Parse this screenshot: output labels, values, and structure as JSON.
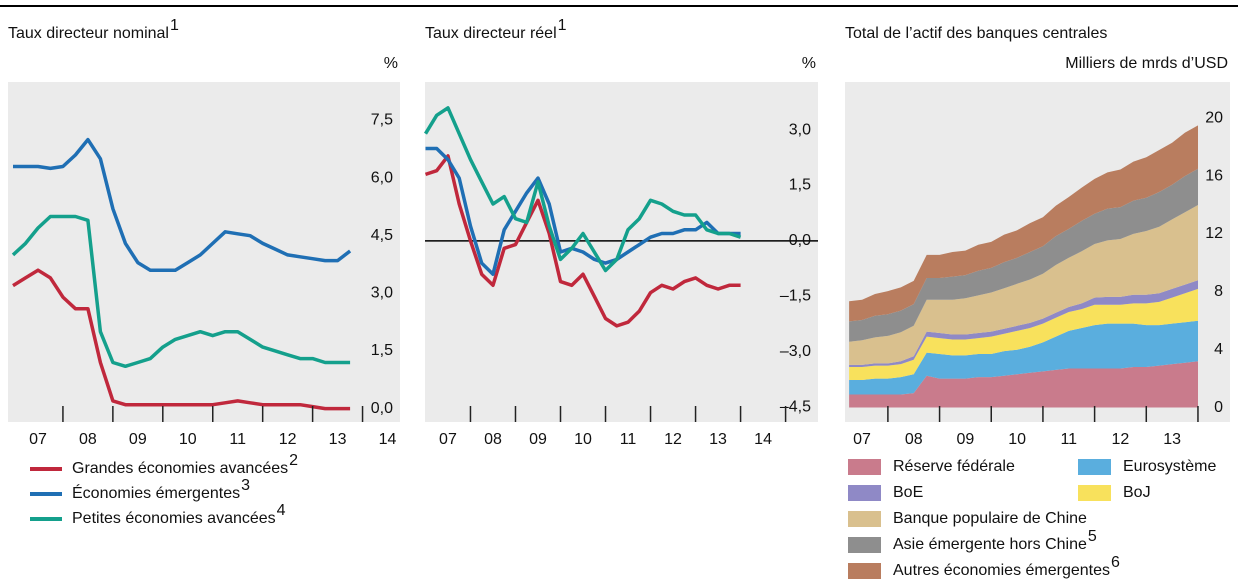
{
  "chart_data": [
    {
      "type": "line",
      "title": "Taux directeur nominal",
      "title_note": "1",
      "unit_label": "%",
      "x": [
        2007,
        2007.25,
        2007.5,
        2007.75,
        2008,
        2008.25,
        2008.5,
        2008.75,
        2009,
        2009.25,
        2009.5,
        2009.75,
        2010,
        2010.25,
        2010.5,
        2010.75,
        2011,
        2011.25,
        2011.5,
        2011.75,
        2012,
        2012.25,
        2012.5,
        2012.75,
        2013,
        2013.25,
        2013.5,
        2013.75
      ],
      "xlim": [
        2006.9,
        2014.75
      ],
      "xticks": [
        {
          "value": 2007.5,
          "label": "07"
        },
        {
          "value": 2008.5,
          "label": "08"
        },
        {
          "value": 2009.5,
          "label": "09"
        },
        {
          "value": 2010.5,
          "label": "10"
        },
        {
          "value": 2011.5,
          "label": "11"
        },
        {
          "value": 2012.5,
          "label": "12"
        },
        {
          "value": 2013.5,
          "label": "13"
        },
        {
          "value": 2014.5,
          "label": "14"
        }
      ],
      "ylim": [
        -0.35,
        8.5
      ],
      "yticks": [
        {
          "value": 0,
          "label": "0,0"
        },
        {
          "value": 1.5,
          "label": "1,5"
        },
        {
          "value": 3,
          "label": "3,0"
        },
        {
          "value": 4.5,
          "label": "4,5"
        },
        {
          "value": 6,
          "label": "6,0"
        },
        {
          "value": 7.5,
          "label": "7,5"
        }
      ],
      "series": [
        {
          "name": "Grandes économies avancées",
          "name_note": "2",
          "color": "#c0283c",
          "values": [
            3.2,
            3.4,
            3.6,
            3.4,
            2.9,
            2.6,
            2.6,
            1.2,
            0.2,
            0.1,
            0.1,
            0.1,
            0.1,
            0.1,
            0.1,
            0.1,
            0.1,
            0.15,
            0.2,
            0.15,
            0.1,
            0.1,
            0.1,
            0.1,
            0.05,
            0,
            0,
            0
          ]
        },
        {
          "name": "Économies émergentes",
          "name_note": "3",
          "color": "#1f6fb4",
          "values": [
            6.3,
            6.3,
            6.3,
            6.25,
            6.3,
            6.6,
            7.0,
            6.5,
            5.2,
            4.3,
            3.8,
            3.6,
            3.6,
            3.6,
            3.8,
            4.0,
            4.3,
            4.6,
            4.55,
            4.5,
            4.3,
            4.15,
            4.0,
            3.95,
            3.9,
            3.85,
            3.85,
            4.1
          ]
        },
        {
          "name": "Petites économies avancées",
          "name_note": "4",
          "color": "#14a08c",
          "values": [
            4.0,
            4.3,
            4.7,
            5.0,
            5.0,
            5.0,
            4.9,
            2.0,
            1.2,
            1.1,
            1.2,
            1.3,
            1.6,
            1.8,
            1.9,
            2.0,
            1.9,
            2.0,
            2.0,
            1.8,
            1.6,
            1.5,
            1.4,
            1.3,
            1.3,
            1.2,
            1.2,
            1.2
          ]
        }
      ]
    },
    {
      "type": "line",
      "title": "Taux directeur réel",
      "title_note": "1",
      "unit_label": "%",
      "zero_line": true,
      "x": [
        2007,
        2007.25,
        2007.5,
        2007.75,
        2008,
        2008.25,
        2008.5,
        2008.75,
        2009,
        2009.25,
        2009.5,
        2009.75,
        2010,
        2010.25,
        2010.5,
        2010.75,
        2011,
        2011.25,
        2011.5,
        2011.75,
        2012,
        2012.25,
        2012.5,
        2012.75,
        2013,
        2013.25,
        2013.5,
        2013.75,
        2014
      ],
      "xlim": [
        2006.99,
        2015.72
      ],
      "xticks": [
        {
          "value": 2007.5,
          "label": "07"
        },
        {
          "value": 2008.5,
          "label": "08"
        },
        {
          "value": 2009.5,
          "label": "09"
        },
        {
          "value": 2010.5,
          "label": "10"
        },
        {
          "value": 2011.5,
          "label": "11"
        },
        {
          "value": 2012.5,
          "label": "12"
        },
        {
          "value": 2013.5,
          "label": "13"
        },
        {
          "value": 2014.5,
          "label": "14"
        }
      ],
      "ylim": [
        -4.9,
        4.3
      ],
      "yticks": [
        {
          "value": -4.5,
          "label": "–4,5"
        },
        {
          "value": -3,
          "label": "–3,0"
        },
        {
          "value": -1.5,
          "label": "–1,5"
        },
        {
          "value": 0,
          "label": "0,0"
        },
        {
          "value": 1.5,
          "label": "1,5"
        },
        {
          "value": 3,
          "label": "3,0"
        }
      ],
      "series": [
        {
          "color": "#c0283c",
          "values": [
            1.8,
            1.9,
            2.3,
            1.0,
            0,
            -0.9,
            -1.2,
            -0.2,
            -0.1,
            0.5,
            1.1,
            0.2,
            -1.1,
            -1.2,
            -0.9,
            -1.5,
            -2.1,
            -2.3,
            -2.2,
            -1.9,
            -1.4,
            -1.2,
            -1.3,
            -1.1,
            -1.0,
            -1.2,
            -1.3,
            -1.2,
            -1.2
          ]
        },
        {
          "color": "#1f6fb4",
          "values": [
            2.5,
            2.5,
            2.2,
            1.7,
            0.4,
            -0.6,
            -0.9,
            0.3,
            0.8,
            1.3,
            1.7,
            1.0,
            -0.3,
            -0.2,
            -0.3,
            -0.5,
            -0.6,
            -0.5,
            -0.3,
            -0.1,
            0.1,
            0.2,
            0.2,
            0.3,
            0.3,
            0.5,
            0.2,
            0.2,
            0.2
          ]
        },
        {
          "color": "#14a08c",
          "values": [
            2.9,
            3.4,
            3.6,
            2.9,
            2.2,
            1.6,
            1.0,
            1.2,
            0.6,
            0.5,
            1.6,
            0.4,
            -0.5,
            -0.2,
            0.2,
            -0.3,
            -0.8,
            -0.5,
            0.3,
            0.6,
            1.1,
            1.0,
            0.8,
            0.7,
            0.7,
            0.3,
            0.2,
            0.2,
            0.1
          ]
        }
      ]
    },
    {
      "type": "area",
      "stacked": true,
      "title": "Total de l’actif des banques centrales",
      "unit_label": "Milliers de mrds d’USD",
      "x": [
        2007.25,
        2007.5,
        2007.75,
        2008,
        2008.25,
        2008.5,
        2008.75,
        2009,
        2009.25,
        2009.5,
        2009.75,
        2010,
        2010.25,
        2010.5,
        2010.75,
        2011,
        2011.25,
        2011.5,
        2011.75,
        2012,
        2012.25,
        2012.5,
        2012.75,
        2013,
        2013.25,
        2013.5,
        2013.75,
        2014
      ],
      "xlim": [
        2007.17,
        2014.62
      ],
      "xticks": [
        {
          "value": 2007.5,
          "label": "07"
        },
        {
          "value": 2008.5,
          "label": "08"
        },
        {
          "value": 2009.5,
          "label": "09"
        },
        {
          "value": 2010.5,
          "label": "10"
        },
        {
          "value": 2011.5,
          "label": "11"
        },
        {
          "value": 2012.5,
          "label": "12"
        },
        {
          "value": 2013.5,
          "label": "13"
        }
      ],
      "ylim": [
        -1,
        22.5
      ],
      "yticks": [
        0,
        4,
        8,
        12,
        16,
        20
      ],
      "series": [
        {
          "name": "Réserve fédérale",
          "color": "#c97b8c",
          "values": [
            0.9,
            0.9,
            0.9,
            0.9,
            0.9,
            1.0,
            2.2,
            2.0,
            2.0,
            2.0,
            2.1,
            2.1,
            2.2,
            2.3,
            2.4,
            2.5,
            2.6,
            2.7,
            2.7,
            2.7,
            2.7,
            2.7,
            2.8,
            2.8,
            2.9,
            3.0,
            3.1,
            3.2
          ]
        },
        {
          "name": "Eurosystème",
          "color": "#5aaede",
          "values": [
            1.0,
            1.0,
            1.1,
            1.1,
            1.2,
            1.3,
            1.6,
            1.7,
            1.6,
            1.6,
            1.6,
            1.6,
            1.7,
            1.7,
            1.8,
            2.0,
            2.3,
            2.6,
            2.8,
            3.0,
            3.1,
            3.1,
            3.0,
            2.9,
            2.8,
            2.8,
            2.8,
            2.8
          ]
        },
        {
          "name": "BoJ",
          "color": "#f8e15c",
          "values": [
            0.9,
            0.9,
            0.9,
            0.9,
            0.9,
            1.0,
            1.1,
            1.1,
            1.1,
            1.1,
            1.1,
            1.2,
            1.2,
            1.3,
            1.3,
            1.3,
            1.3,
            1.3,
            1.3,
            1.4,
            1.3,
            1.3,
            1.4,
            1.5,
            1.6,
            1.8,
            2.0,
            2.2
          ]
        },
        {
          "name": "BoE",
          "color": "#8f89c6",
          "values": [
            0.15,
            0.15,
            0.15,
            0.15,
            0.2,
            0.25,
            0.35,
            0.35,
            0.35,
            0.35,
            0.35,
            0.35,
            0.35,
            0.35,
            0.35,
            0.35,
            0.35,
            0.35,
            0.4,
            0.5,
            0.55,
            0.55,
            0.6,
            0.6,
            0.6,
            0.6,
            0.6,
            0.6
          ]
        },
        {
          "name": "Banque populaire de Chine",
          "color": "#d9c08e",
          "values": [
            1.6,
            1.7,
            1.8,
            1.9,
            2.0,
            2.1,
            2.2,
            2.3,
            2.4,
            2.5,
            2.6,
            2.7,
            2.8,
            2.9,
            3.0,
            3.1,
            3.3,
            3.4,
            3.6,
            3.7,
            3.9,
            4.0,
            4.2,
            4.4,
            4.6,
            4.8,
            5.0,
            5.2
          ]
        },
        {
          "name": "Asie émergente hors Chine",
          "name_note": "5",
          "color": "#8e8e8e",
          "values": [
            1.4,
            1.4,
            1.5,
            1.5,
            1.5,
            1.5,
            1.5,
            1.5,
            1.6,
            1.6,
            1.7,
            1.7,
            1.8,
            1.8,
            1.9,
            1.9,
            2.0,
            2.0,
            2.1,
            2.1,
            2.2,
            2.2,
            2.3,
            2.3,
            2.4,
            2.4,
            2.5,
            2.5
          ]
        },
        {
          "name": "Autres économies émergentes",
          "name_note": "6",
          "color": "#b97d5f",
          "values": [
            1.4,
            1.4,
            1.5,
            1.6,
            1.6,
            1.6,
            1.6,
            1.6,
            1.7,
            1.7,
            1.8,
            1.8,
            1.9,
            1.9,
            2.0,
            2.0,
            2.1,
            2.2,
            2.3,
            2.4,
            2.5,
            2.6,
            2.7,
            2.8,
            2.9,
            2.9,
            3.0,
            3.0
          ]
        }
      ]
    }
  ]
}
